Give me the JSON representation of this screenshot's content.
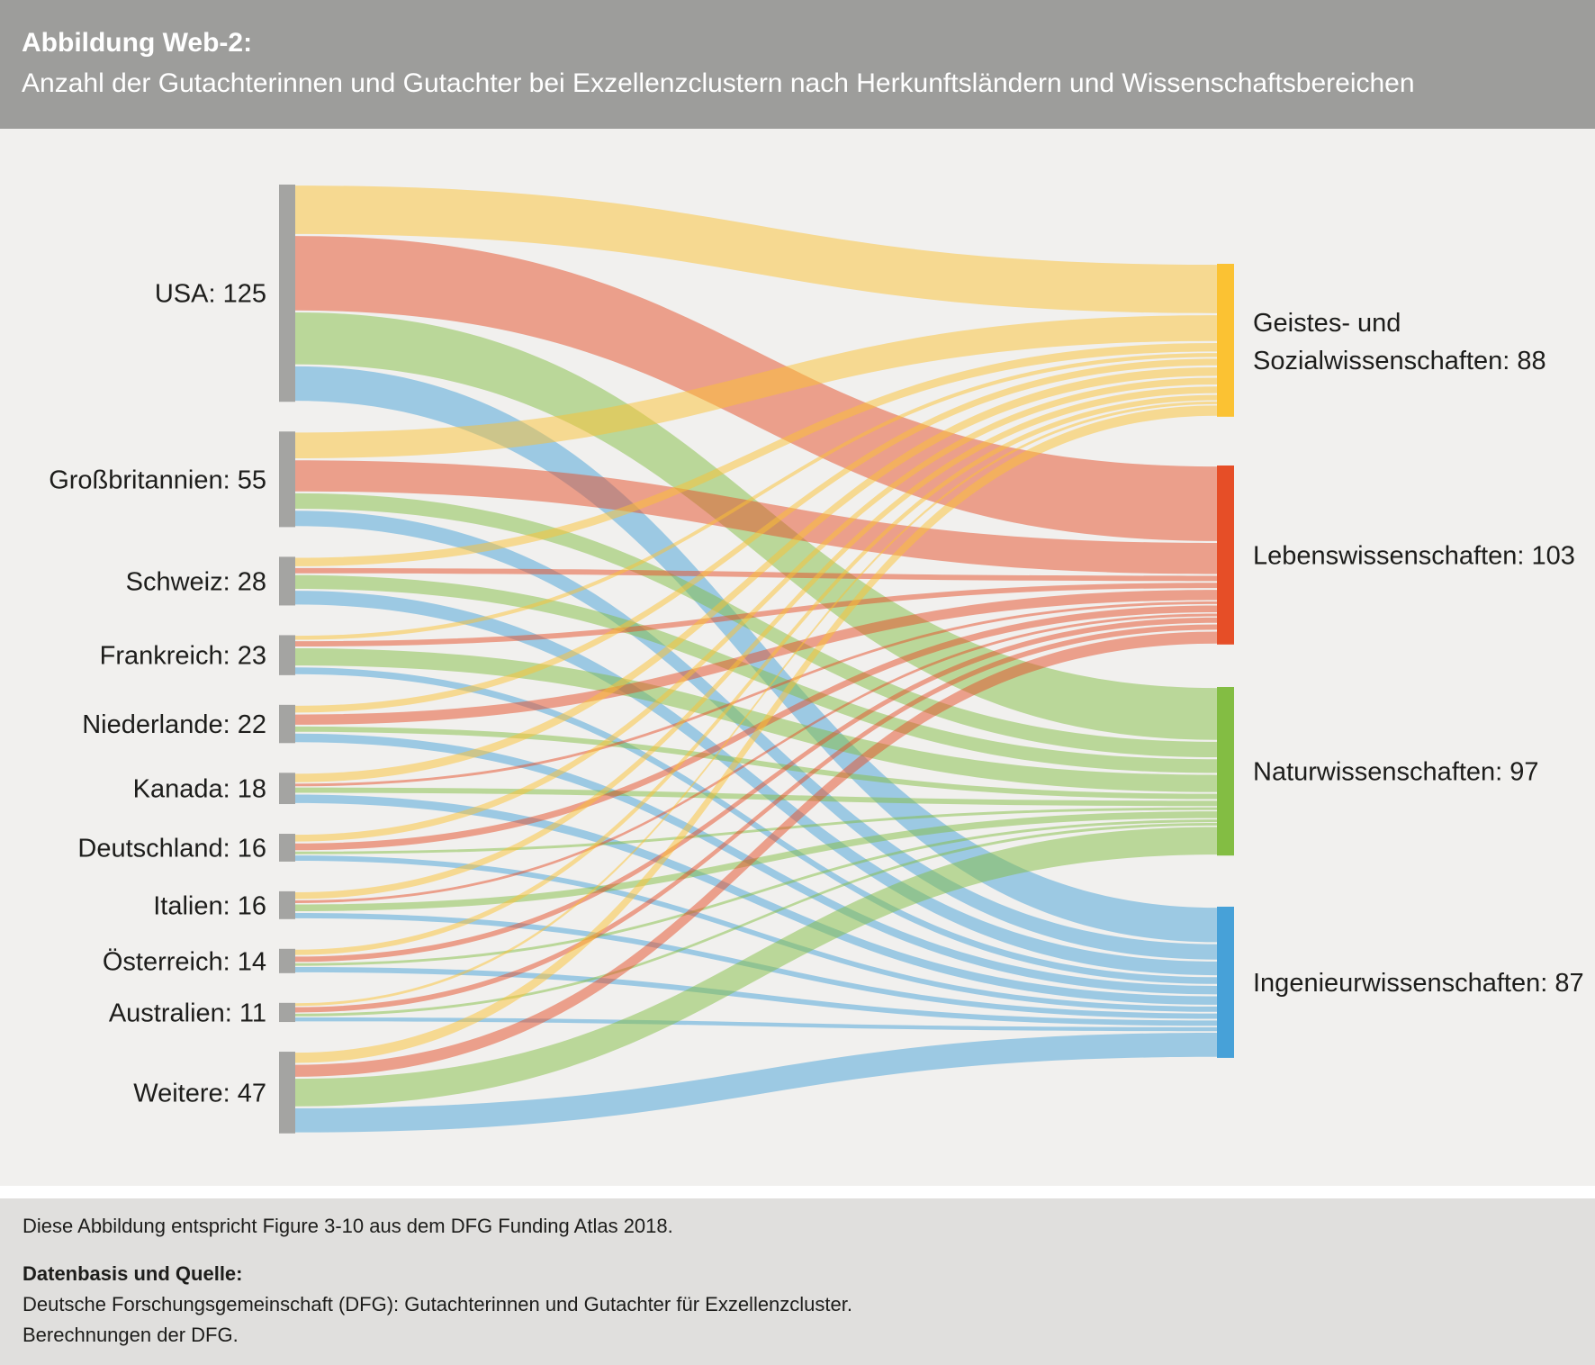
{
  "header": {
    "title_bold": "Abbildung Web-2:",
    "subtitle": "Anzahl der Gutachterinnen und Gutachter bei Exzellenzclustern nach Herkunftsländern und Wissenschaftsbereichen"
  },
  "chart_data": {
    "type": "sankey",
    "title": "Anzahl der Gutachterinnen und Gutachter bei Exzellenzclustern nach Herkunftsländern und Wissenschaftsbereichen",
    "left_axis": "Herkunftsländer",
    "right_axis": "Wissenschaftsbereiche",
    "sources": [
      {
        "name": "USA",
        "value": 125,
        "label": "USA: 125"
      },
      {
        "name": "Großbritannien",
        "value": 55,
        "label": "Großbritannien: 55"
      },
      {
        "name": "Schweiz",
        "value": 28,
        "label": "Schweiz: 28"
      },
      {
        "name": "Frankreich",
        "value": 23,
        "label": "Frankreich: 23"
      },
      {
        "name": "Niederlande",
        "value": 22,
        "label": "Niederlande: 22"
      },
      {
        "name": "Kanada",
        "value": 18,
        "label": "Kanada: 18"
      },
      {
        "name": "Deutschland",
        "value": 16,
        "label": "Deutschland: 16"
      },
      {
        "name": "Italien",
        "value": 16,
        "label": "Italien: 16"
      },
      {
        "name": "Österreich",
        "value": 14,
        "label": "Österreich: 14"
      },
      {
        "name": "Australien",
        "value": 11,
        "label": "Australien: 11"
      },
      {
        "name": "Weitere",
        "value": 47,
        "label": "Weitere: 47"
      }
    ],
    "targets": [
      {
        "name": "Geistes- und Sozialwissenschaften",
        "value": 88,
        "label": "Geistes- und Sozialwissenschaften: 88",
        "label_lines": [
          "Geistes- und",
          "Sozialwissenschaften: 88"
        ],
        "color": "#fbc233"
      },
      {
        "name": "Lebenswissenschaften",
        "value": 103,
        "label": "Lebenswissenschaften: 103",
        "label_lines": [
          "Lebenswissenschaften: 103"
        ],
        "color": "#e64e27"
      },
      {
        "name": "Naturwissenschaften",
        "value": 97,
        "label": "Naturwissenschaften: 97",
        "label_lines": [
          "Naturwissenschaften: 97"
        ],
        "color": "#83bd43"
      },
      {
        "name": "Ingenieurwissenschaften",
        "value": 87,
        "label": "Ingenieurwissenschaften: 87",
        "label_lines": [
          "Ingenieurwissenschaften: 87"
        ],
        "color": "#47a1d8"
      }
    ],
    "link_rows": "sources",
    "link_cols": "targets",
    "links": [
      [
        29,
        44,
        31,
        21
      ],
      [
        16,
        19,
        10,
        10
      ],
      [
        6,
        4,
        9,
        9
      ],
      [
        3,
        4,
        11,
        5
      ],
      [
        5,
        7,
        4,
        6
      ],
      [
        6,
        2,
        4,
        6
      ],
      [
        5,
        5,
        2,
        4
      ],
      [
        5,
        2,
        5,
        4
      ],
      [
        4,
        4,
        2,
        4
      ],
      [
        2,
        4,
        2,
        3
      ],
      [
        7,
        8,
        17,
        15
      ]
    ]
  },
  "footer": {
    "note": "Diese Abbildung entspricht Figure 3-10 aus dem DFG Funding Atlas 2018.",
    "source_heading": "Datenbasis und Quelle:",
    "source_line1": "Deutsche Forschungsgemeinschaft (DFG): Gutachterinnen und Gutachter für Exzellenzcluster.",
    "source_line2": "Berechnungen der DFG."
  },
  "colors": {
    "header_bg": "#9d9d9b",
    "background": "#f1f0ee",
    "footer_bg": "#e0dfdd",
    "divider": "#ffffff",
    "source_node": "#a4a4a2",
    "text": "#1d1d1b",
    "title_text": "#ffffff"
  }
}
